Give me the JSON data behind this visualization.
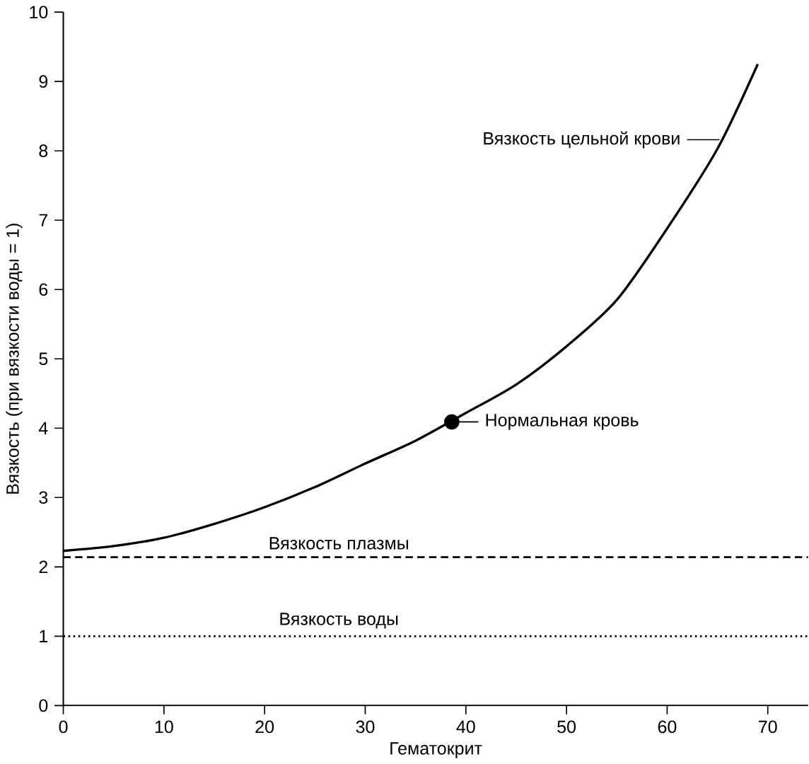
{
  "chart_data": {
    "type": "line",
    "xlabel": "Гематокрит",
    "ylabel": "Вязкость (при вязкости воды = 1)",
    "xlim": [
      0,
      74
    ],
    "ylim": [
      0,
      10
    ],
    "xticks": [
      0,
      10,
      20,
      30,
      40,
      50,
      60,
      70
    ],
    "yticks": [
      0,
      1,
      2,
      3,
      4,
      5,
      6,
      7,
      8,
      9,
      10
    ],
    "grid": false,
    "series": [
      {
        "color": "#000000",
        "line_style": "solid",
        "marker": "none",
        "x": [
          0,
          5,
          10,
          15,
          20,
          25,
          30,
          35,
          40,
          45,
          50,
          55,
          60,
          65,
          69
        ],
        "values": [
          2.23,
          2.3,
          2.42,
          2.62,
          2.86,
          3.15,
          3.49,
          3.82,
          4.22,
          4.63,
          5.18,
          5.85,
          6.88,
          8.03,
          9.25
        ]
      },
      {
        "type": "scatter",
        "color": "#000000",
        "marker": "circle",
        "x": [
          38.6
        ],
        "values": [
          4.09
        ]
      }
    ],
    "ref_lines": [
      {
        "axis": "y",
        "value": 2.14,
        "label": "Вязкость плазмы",
        "line_style": "dashed",
        "color": "#000000"
      },
      {
        "axis": "y",
        "value": 1.0,
        "label": "Вязкость воды",
        "line_style": "dotted",
        "color": "#000000"
      }
    ],
    "annotations": [
      {
        "text": "Вязкость цельной крови",
        "x": 65.2,
        "y": 8.16
      },
      {
        "text": "Нормальная кровь",
        "x": 38.6,
        "y": 4.09
      }
    ]
  }
}
